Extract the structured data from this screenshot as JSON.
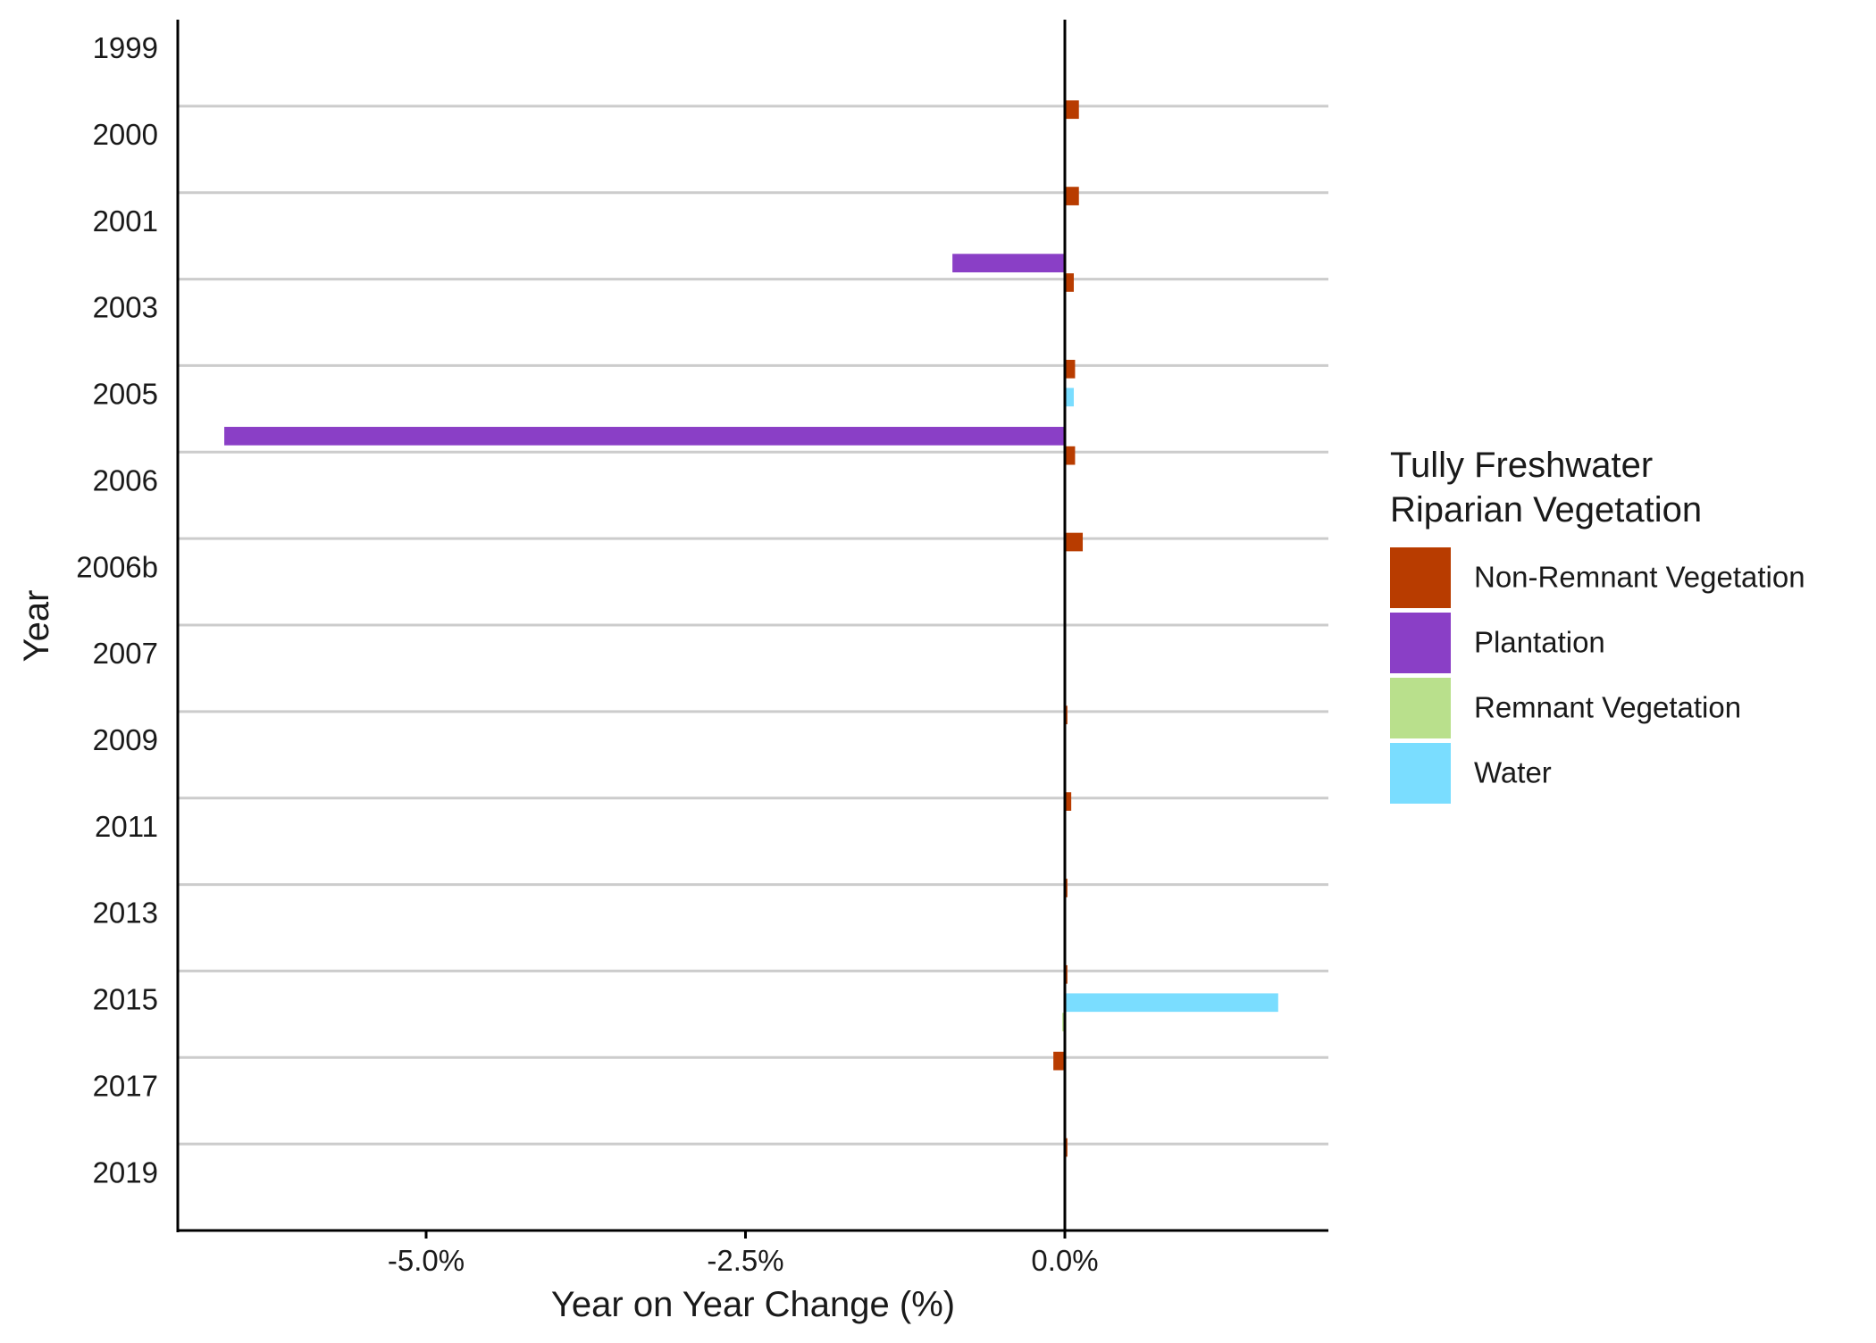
{
  "chart_data": {
    "type": "bar",
    "orientation": "horizontal",
    "title": "",
    "xlabel": "Year on Year Change (%)",
    "ylabel": "Year",
    "categories": [
      "1999",
      "2000",
      "2001",
      "2003",
      "2005",
      "2006",
      "2006b",
      "2007",
      "2009",
      "2011",
      "2013",
      "2015",
      "2017",
      "2019"
    ],
    "xlim": [
      -7.0,
      2.1
    ],
    "xticks": [
      -5.0,
      -2.5,
      0.0
    ],
    "xtick_labels": [
      "-5.0%",
      "-2.5%",
      "0.0%"
    ],
    "grid": "horizontal separators between years",
    "legend": {
      "title": "Tully Freshwater\nRiparian Vegetation",
      "position": "right"
    },
    "series": [
      {
        "name": "Non-Remnant Vegetation",
        "color": "#B83C00",
        "values": [
          0.11,
          0.11,
          0.07,
          0.08,
          0.08,
          0.14,
          null,
          0.02,
          0.05,
          0.02,
          0.02,
          -0.09,
          0.02,
          null
        ]
      },
      {
        "name": "Plantation",
        "color": "#8A3FC6",
        "values": [
          null,
          null,
          -0.88,
          null,
          -6.58,
          null,
          null,
          null,
          null,
          null,
          null,
          null,
          null,
          null
        ]
      },
      {
        "name": "Remnant Vegetation",
        "color": "#B9E08C",
        "values": [
          null,
          null,
          null,
          null,
          null,
          -0.01,
          null,
          null,
          null,
          null,
          null,
          -0.02,
          null,
          null
        ]
      },
      {
        "name": "Water",
        "color": "#7ADDFF",
        "values": [
          null,
          null,
          null,
          null,
          0.07,
          null,
          null,
          null,
          null,
          null,
          null,
          1.67,
          null,
          null
        ]
      }
    ]
  }
}
